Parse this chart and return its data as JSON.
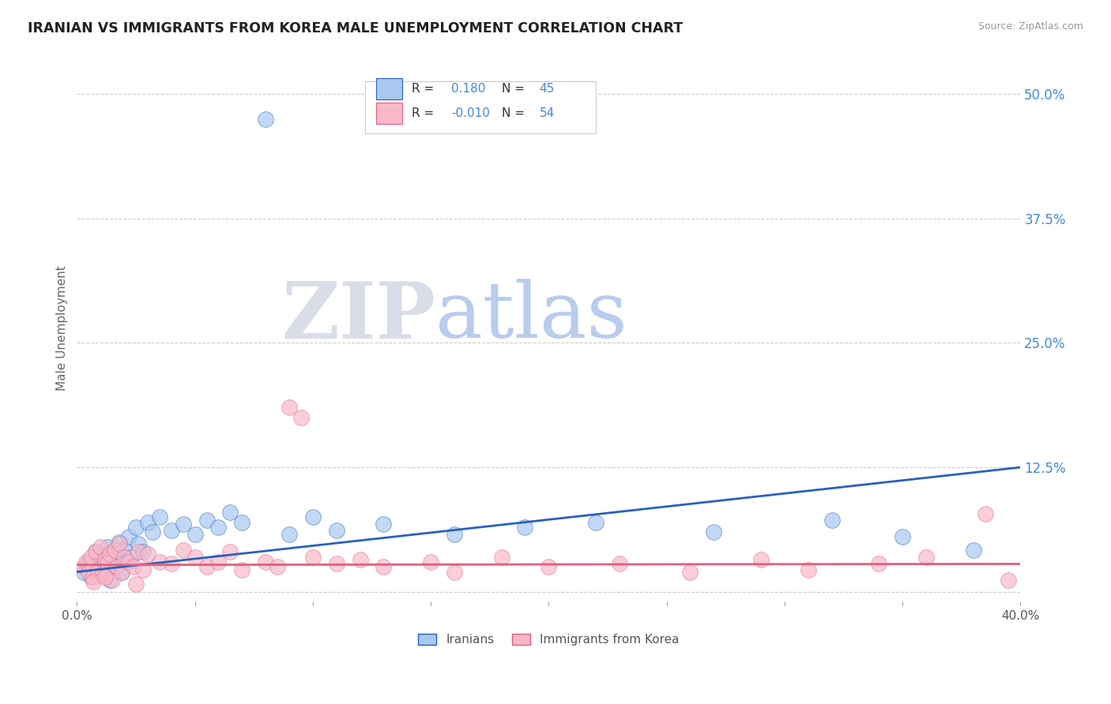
{
  "title": "IRANIAN VS IMMIGRANTS FROM KOREA MALE UNEMPLOYMENT CORRELATION CHART",
  "source": "Source: ZipAtlas.com",
  "ylabel": "Male Unemployment",
  "xmin": 0.0,
  "xmax": 0.4,
  "ymin": -0.01,
  "ymax": 0.54,
  "yticks": [
    0.0,
    0.125,
    0.25,
    0.375,
    0.5
  ],
  "ytick_labels": [
    "",
    "12.5%",
    "25.0%",
    "37.5%",
    "50.0%"
  ],
  "r1": 0.18,
  "n1": 45,
  "r2": -0.01,
  "n2": 54,
  "color_blue": "#a8c8f0",
  "color_pink": "#f8b8c8",
  "line_blue": "#2860c0",
  "line_pink": "#e06080",
  "blue_line_y0": 0.02,
  "blue_line_y1": 0.125,
  "pink_line_y0": 0.027,
  "pink_line_y1": 0.028,
  "iranians_x": [
    0.003,
    0.005,
    0.006,
    0.007,
    0.008,
    0.009,
    0.01,
    0.011,
    0.012,
    0.013,
    0.014,
    0.015,
    0.016,
    0.017,
    0.018,
    0.019,
    0.02,
    0.021,
    0.022,
    0.023,
    0.025,
    0.026,
    0.028,
    0.03,
    0.032,
    0.035,
    0.04,
    0.045,
    0.05,
    0.055,
    0.06,
    0.065,
    0.07,
    0.08,
    0.09,
    0.1,
    0.11,
    0.13,
    0.16,
    0.19,
    0.22,
    0.27,
    0.32,
    0.35,
    0.38
  ],
  "iranians_y": [
    0.02,
    0.03,
    0.015,
    0.025,
    0.04,
    0.022,
    0.035,
    0.018,
    0.028,
    0.045,
    0.012,
    0.038,
    0.032,
    0.025,
    0.05,
    0.02,
    0.042,
    0.03,
    0.055,
    0.035,
    0.065,
    0.048,
    0.04,
    0.07,
    0.06,
    0.075,
    0.062,
    0.068,
    0.058,
    0.072,
    0.065,
    0.08,
    0.07,
    0.475,
    0.058,
    0.075,
    0.062,
    0.068,
    0.058,
    0.065,
    0.07,
    0.06,
    0.072,
    0.055,
    0.042
  ],
  "korea_x": [
    0.003,
    0.004,
    0.005,
    0.006,
    0.007,
    0.008,
    0.009,
    0.01,
    0.011,
    0.012,
    0.013,
    0.014,
    0.015,
    0.016,
    0.017,
    0.018,
    0.019,
    0.02,
    0.022,
    0.024,
    0.026,
    0.028,
    0.03,
    0.035,
    0.04,
    0.045,
    0.05,
    0.055,
    0.06,
    0.065,
    0.07,
    0.08,
    0.085,
    0.09,
    0.095,
    0.1,
    0.11,
    0.12,
    0.13,
    0.15,
    0.16,
    0.18,
    0.2,
    0.23,
    0.26,
    0.29,
    0.31,
    0.34,
    0.36,
    0.385,
    0.007,
    0.012,
    0.025,
    0.395
  ],
  "korea_y": [
    0.025,
    0.03,
    0.02,
    0.035,
    0.015,
    0.04,
    0.022,
    0.045,
    0.018,
    0.032,
    0.028,
    0.038,
    0.012,
    0.042,
    0.025,
    0.048,
    0.02,
    0.035,
    0.03,
    0.025,
    0.04,
    0.022,
    0.038,
    0.03,
    0.028,
    0.042,
    0.035,
    0.025,
    0.03,
    0.04,
    0.022,
    0.03,
    0.025,
    0.185,
    0.175,
    0.035,
    0.028,
    0.032,
    0.025,
    0.03,
    0.02,
    0.035,
    0.025,
    0.028,
    0.02,
    0.032,
    0.022,
    0.028,
    0.035,
    0.078,
    0.01,
    0.015,
    0.008,
    0.012
  ]
}
